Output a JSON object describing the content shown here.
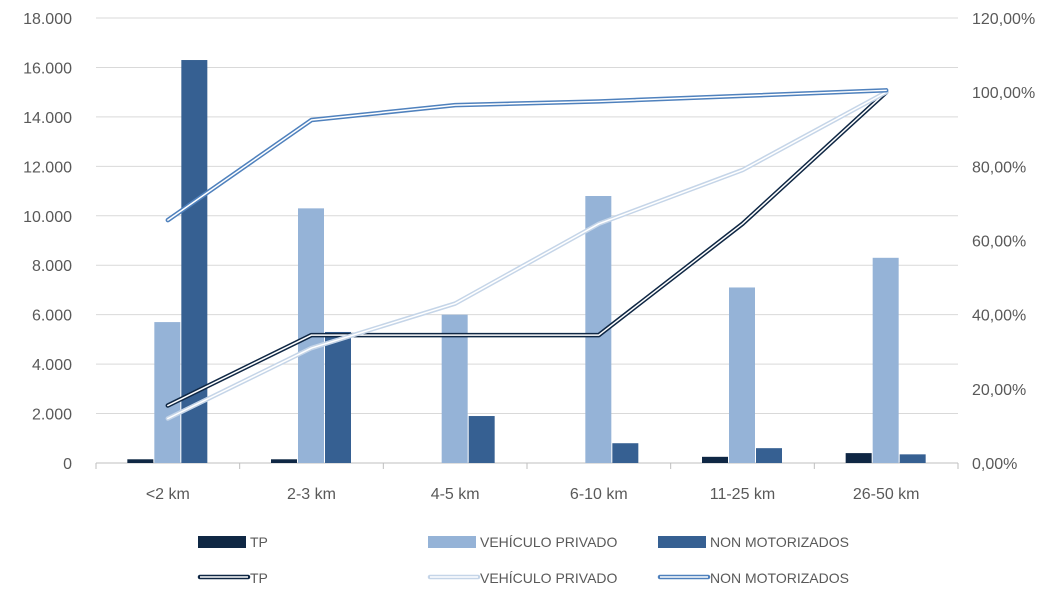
{
  "chart_data": {
    "type": "bar",
    "combo": "bar + line (secondary axis)",
    "title": "",
    "categories": [
      "<2 km",
      "2-3 km",
      "4-5 km",
      "6-10 km",
      "11-25 km",
      "26-50 km"
    ],
    "y_left": {
      "min": 0,
      "max": 18000,
      "step": 2000,
      "tick_labels": [
        "0",
        "2.000",
        "4.000",
        "6.000",
        "8.000",
        "10.000",
        "12.000",
        "14.000",
        "16.000",
        "18.000"
      ]
    },
    "y_right": {
      "min": 0,
      "max": 120,
      "step": 20,
      "tick_labels": [
        "0,00%",
        "20,00%",
        "40,00%",
        "60,00%",
        "80,00%",
        "100,00%",
        "120,00%"
      ]
    },
    "grid": true,
    "legend_position": "bottom",
    "bar_series": [
      {
        "name": "TP",
        "color": "#0f2744",
        "values": [
          150,
          150,
          0,
          0,
          250,
          400
        ]
      },
      {
        "name": "VEHÍCULO PRIVADO",
        "color": "#95b3d7",
        "values": [
          5700,
          10300,
          6000,
          10800,
          7100,
          8300
        ]
      },
      {
        "name": "NON MOTORIZADOS",
        "color": "#366092",
        "values": [
          16300,
          5300,
          1900,
          800,
          600,
          350
        ]
      }
    ],
    "line_series": [
      {
        "name": "TP",
        "color": "#0f2744",
        "values": [
          15.5,
          34.5,
          34.5,
          34.5,
          64.5,
          100
        ]
      },
      {
        "name": "VEHÍCULO PRIVADO",
        "color": "#c5d5e8",
        "values": [
          12,
          31,
          43,
          64.5,
          79,
          100
        ]
      },
      {
        "name": "NON MOTORIZADOS",
        "color": "#4f81bd",
        "values": [
          65.5,
          92.5,
          96.5,
          97.5,
          99,
          100.5
        ]
      }
    ]
  }
}
